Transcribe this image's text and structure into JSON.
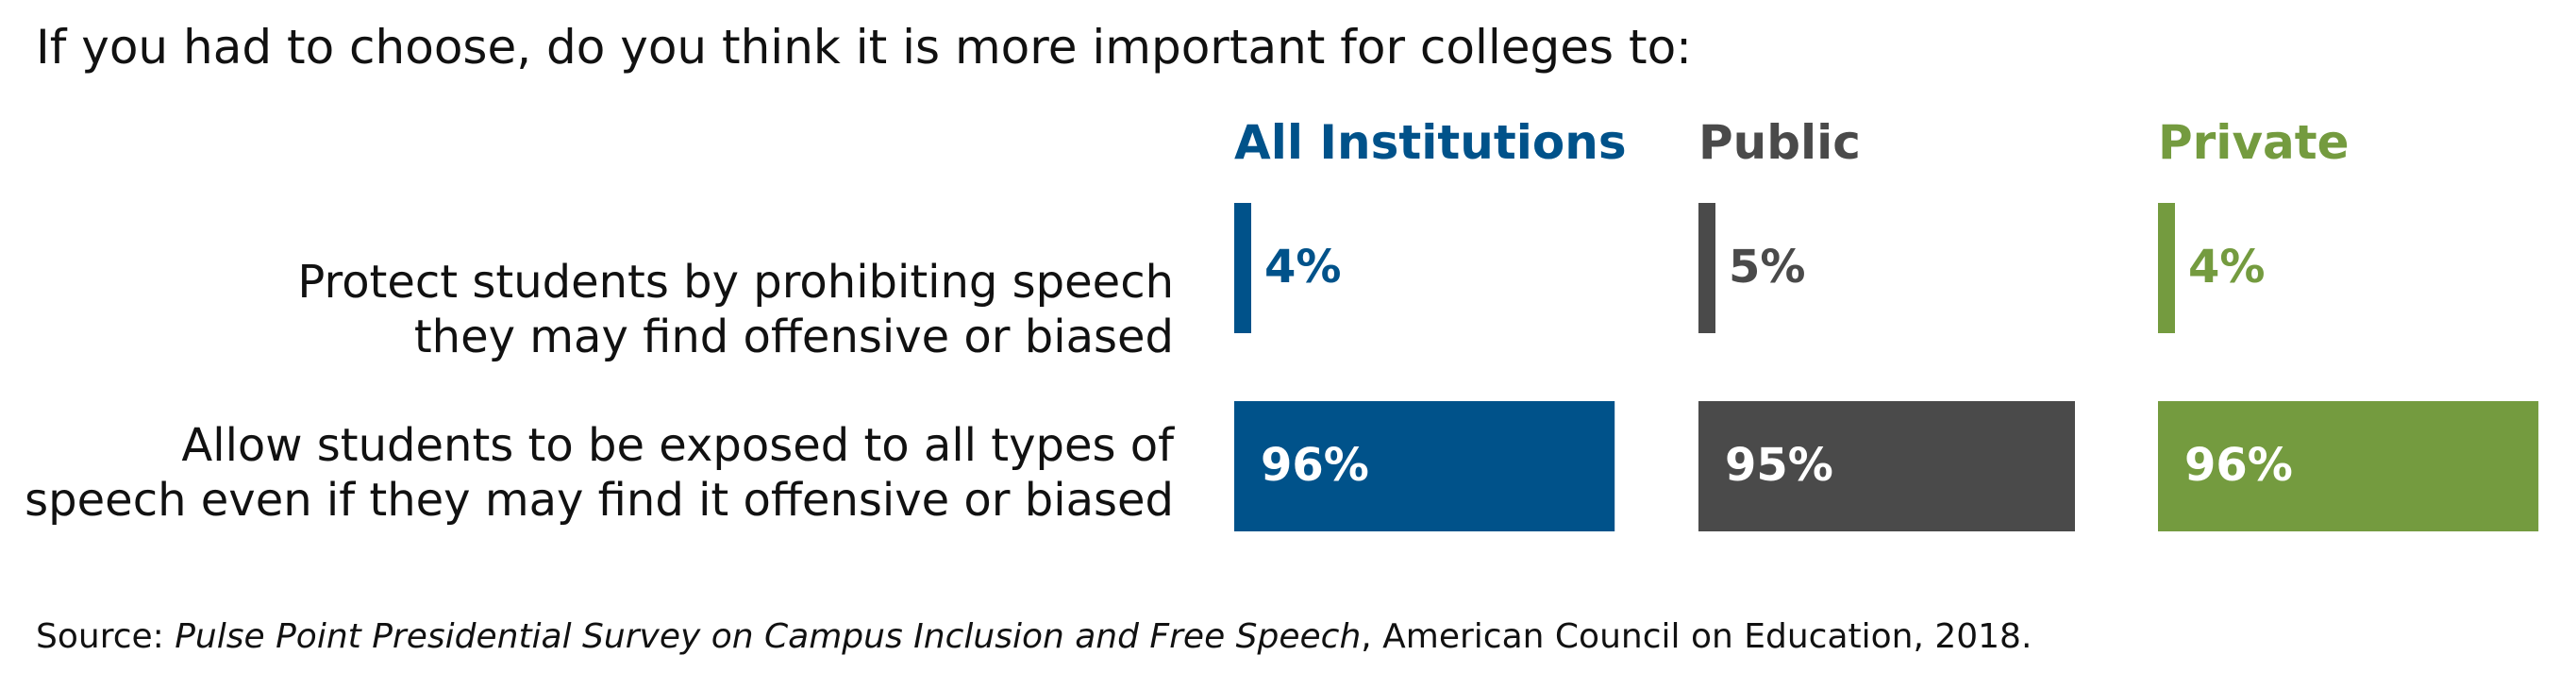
{
  "question": "If you had to choose, do you think it is more important for colleges to:",
  "source": {
    "prefix": "Source: ",
    "title": "Pulse Point Presidential Survey on Campus Inclusion and Free Speech",
    "suffix": ", American Council on Education, 2018."
  },
  "chart_data": {
    "type": "bar",
    "title": "If you had to choose, do you think it is more important for colleges to:",
    "categories": [
      "Protect students by prohibiting speech\nthey may find offensive or biased",
      "Allow students to be exposed to all types of\nspeech even if they may find it offensive or biased"
    ],
    "series": [
      {
        "name": "All Institutions",
        "color": "#00528a",
        "values": [
          4,
          96
        ],
        "labels": [
          "4%",
          "96%"
        ]
      },
      {
        "name": "Public",
        "color": "#4a4a4a",
        "values": [
          5,
          95
        ],
        "labels": [
          "5%",
          "95%"
        ]
      },
      {
        "name": "Private",
        "color": "#749b3f",
        "values": [
          4,
          96
        ],
        "labels": [
          "4%",
          "96%"
        ]
      }
    ],
    "unit": "%",
    "ylim": [
      0,
      100
    ],
    "grid": false,
    "legend": "top"
  }
}
